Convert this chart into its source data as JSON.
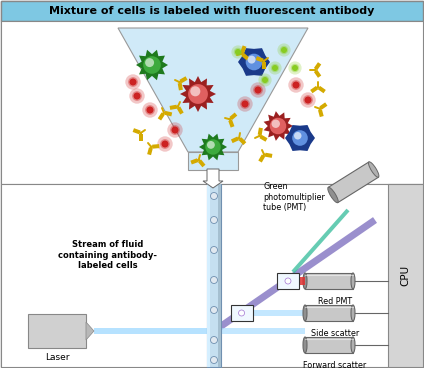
{
  "title": "Mixture of cells is labeled with fluorescent antibody",
  "title_bg": "#7ec8e3",
  "stream_label": "Stream of fluid\ncontaining antibody-\nlabeled cells",
  "laser_label": "Laser",
  "green_pmt_label": "Green\nphotomultiplier\ntube (PMT)",
  "red_pmt_label": "Red PMT",
  "side_scatter_label": "Side scatter",
  "forward_scatter_label": "Forward scatter",
  "cpu_label": "CPU",
  "fig_width": 4.24,
  "fig_height": 3.68,
  "dpi": 100
}
